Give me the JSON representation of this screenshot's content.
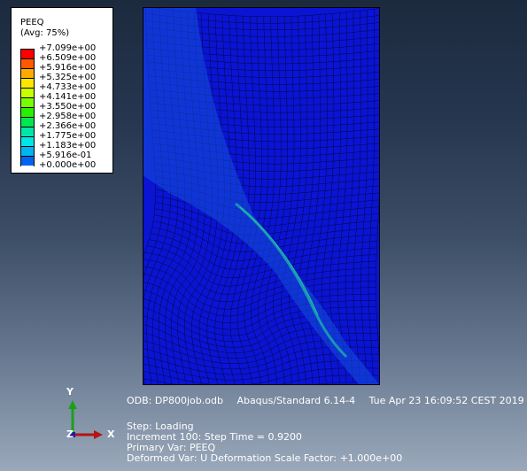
{
  "legend": {
    "title": "PEEQ",
    "subtitle": "(Avg: 75%)",
    "entries": [
      {
        "label": "+7.099e+00",
        "color": "#ff0000"
      },
      {
        "label": "+6.509e+00",
        "color": "#ff5a00"
      },
      {
        "label": "+5.916e+00",
        "color": "#ffaa00"
      },
      {
        "label": "+5.325e+00",
        "color": "#ffe600"
      },
      {
        "label": "+4.733e+00",
        "color": "#c8ff00"
      },
      {
        "label": "+4.141e+00",
        "color": "#78ff00"
      },
      {
        "label": "+3.550e+00",
        "color": "#28f000"
      },
      {
        "label": "+2.958e+00",
        "color": "#00e650"
      },
      {
        "label": "+2.366e+00",
        "color": "#00e6aa"
      },
      {
        "label": "+1.775e+00",
        "color": "#00e6e6"
      },
      {
        "label": "+1.183e+00",
        "color": "#00b4f0"
      },
      {
        "label": "+5.916e-01",
        "color": "#0064f0"
      },
      {
        "label": "+0.000e+00",
        "color": "#0000e6"
      }
    ]
  },
  "odb_line": {
    "odb": "ODB: DP800job.odb",
    "solver": "Abaqus/Standard 6.14-4",
    "date": "Tue Apr 23 16:09:52 CEST 2019"
  },
  "status": {
    "step": "Step: Loading",
    "increment": "Increment     100: Step Time =    0.9200",
    "primary": "Primary Var: PEEQ",
    "deformed": "Deformed Var: U   Deformation Scale Factor: +1.000e+00"
  },
  "triad": {
    "y": "Y",
    "z": "Z",
    "x": "X"
  },
  "colors": {
    "mesh_fill": "#0a14d2",
    "band_fill": "#1450dc",
    "band_hot": "#1aa0b4"
  }
}
